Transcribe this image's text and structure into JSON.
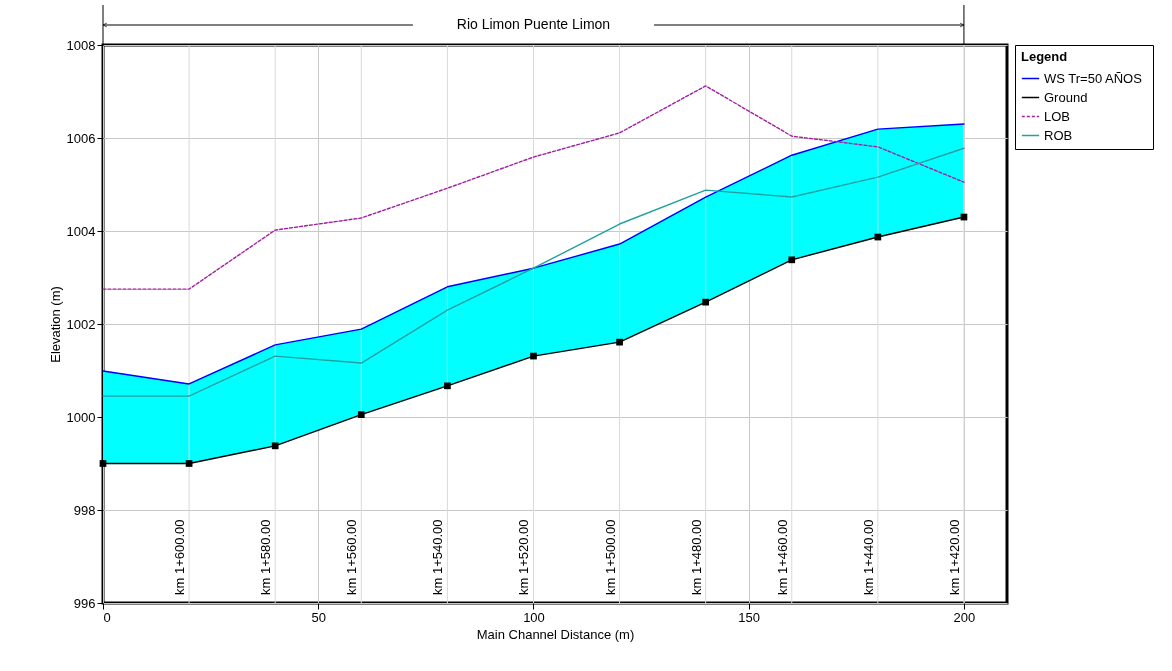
{
  "chart_data": {
    "type": "line",
    "title": "Rio Limon Puente Limon",
    "xlabel": "Main Channel Distance (m)",
    "ylabel": "Elevation (m)",
    "legend_title": "Legend",
    "x": [
      0,
      20,
      40,
      60,
      80,
      100,
      120,
      140,
      160,
      180,
      200
    ],
    "series": [
      {
        "name": "WS  Tr=50 AÑOS",
        "color": "#0000ff",
        "line_style": "solid",
        "values": [
          1000.99,
          1000.71,
          1001.55,
          1001.89,
          1002.8,
          1003.2,
          1003.72,
          1004.73,
          1005.63,
          1006.19,
          1006.3
        ],
        "lower": [
          999.0,
          999.0,
          999.38,
          1000.05,
          1000.67,
          1001.31,
          1001.61,
          1002.47,
          1003.38,
          1003.87,
          1004.3
        ],
        "upper": [
          1000.99,
          1000.71,
          1001.55,
          1001.89,
          1002.8,
          1003.2,
          1003.72,
          1004.73,
          1005.63,
          1006.19,
          1006.3
        ]
      },
      {
        "name": "Ground",
        "color": "#000000",
        "line_style": "solid",
        "marker": "square",
        "values": [
          999.0,
          999.0,
          999.38,
          1000.05,
          1000.67,
          1001.31,
          1001.61,
          1002.47,
          1003.38,
          1003.87,
          1004.3
        ]
      },
      {
        "name": "LOB",
        "color": "#a020a0",
        "line_style": "dashed",
        "values": [
          1002.75,
          1002.75,
          1004.02,
          1004.28,
          1004.92,
          1005.59,
          1006.11,
          1007.12,
          1006.04,
          1005.81,
          1005.05
        ]
      },
      {
        "name": "ROB",
        "color": "#20a0a0",
        "line_style": "solid",
        "values": [
          1000.45,
          1000.45,
          1001.31,
          1001.16,
          1002.3,
          1003.2,
          1004.15,
          1004.88,
          1004.73,
          1005.16,
          1005.78
        ]
      }
    ],
    "ref_lines": [
      {
        "axis": "x",
        "value": 20,
        "label": "km 1+600.00",
        "color": "#d9d9d9"
      },
      {
        "axis": "x",
        "value": 40,
        "label": "km 1+580.00",
        "color": "#d9d9d9"
      },
      {
        "axis": "x",
        "value": 60,
        "label": "km 1+560.00",
        "color": "#d9d9d9"
      },
      {
        "axis": "x",
        "value": 80,
        "label": "km 1+540.00",
        "color": "#d9d9d9"
      },
      {
        "axis": "x",
        "value": 100,
        "label": "km 1+520.00",
        "color": "#d9d9d9"
      },
      {
        "axis": "x",
        "value": 120,
        "label": "km 1+500.00",
        "color": "#d9d9d9"
      },
      {
        "axis": "x",
        "value": 140,
        "label": "km 1+480.00",
        "color": "#d9d9d9"
      },
      {
        "axis": "x",
        "value": 160,
        "label": "km 1+460.00",
        "color": "#d9d9d9"
      },
      {
        "axis": "x",
        "value": 180,
        "label": "km 1+440.00",
        "color": "#d9d9d9"
      },
      {
        "axis": "x",
        "value": 200,
        "label": "km 1+420.00",
        "color": "#d9d9d9"
      }
    ],
    "xlim": [
      0,
      210
    ],
    "xticks": [
      0,
      50,
      100,
      150,
      200
    ],
    "ylim": [
      996,
      1008
    ],
    "yticks": [
      996,
      998,
      1000,
      1002,
      1004,
      1006,
      1008
    ],
    "grid": true,
    "legend": "right"
  }
}
